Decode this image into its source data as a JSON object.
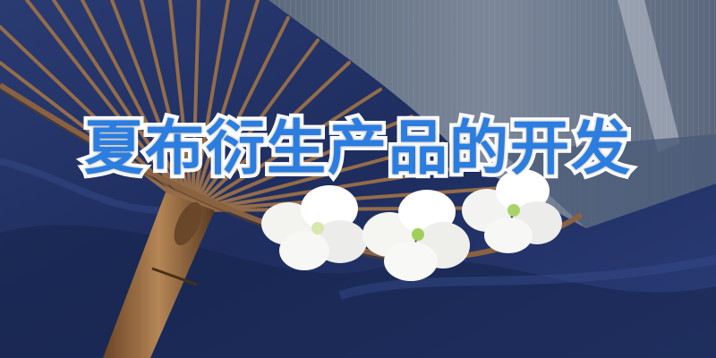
{
  "banner": {
    "title": "夏布衍生产品的开发"
  },
  "colors": {
    "title_fill": "#2b7de0",
    "title_outline": "#ffffff",
    "cloth_blue": "#1f2f63",
    "fan_bamboo": "#9a7048",
    "linen_gray": "#6e7b8e"
  }
}
